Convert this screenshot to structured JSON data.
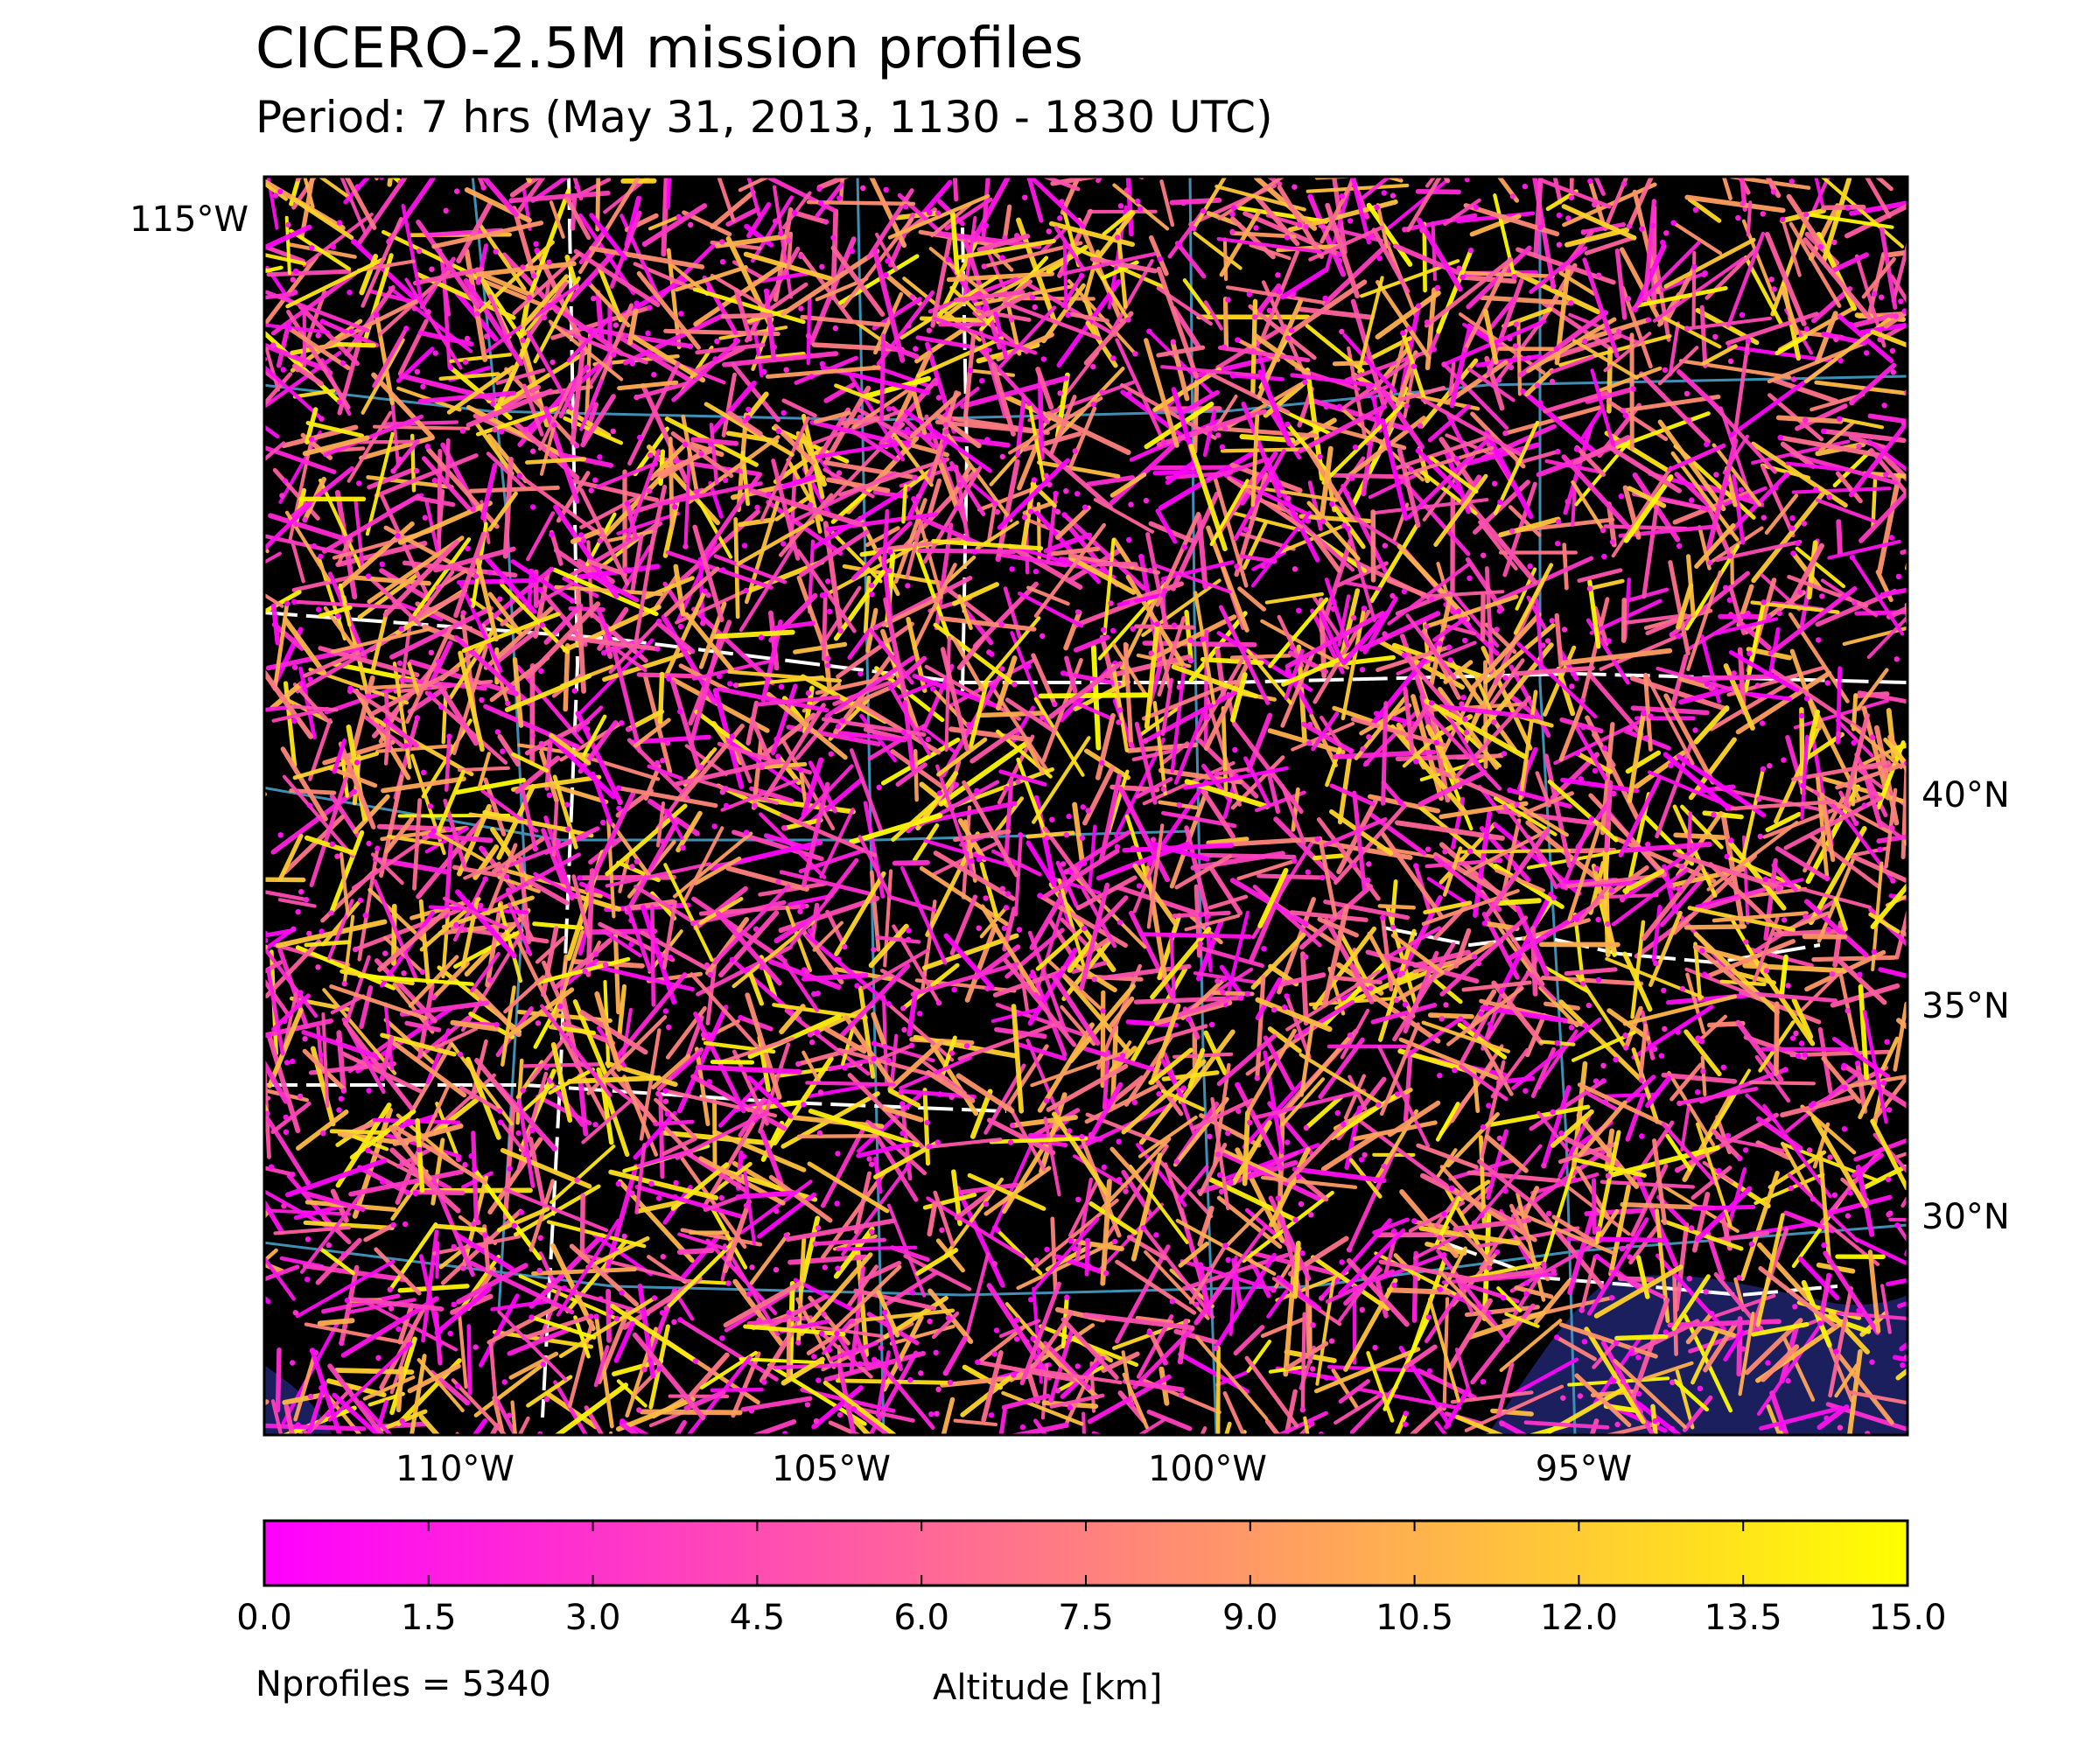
{
  "chart_data": {
    "type": "scatter",
    "title": "CICERO-2.5M mission profiles",
    "subtitle": "Period: 7 hrs (May 31, 2013, 1130 - 1830 UTC)",
    "map": {
      "lon_ticks": [
        "110°W",
        "105°W",
        "100°W",
        "95°W"
      ],
      "lon_tick_values": [
        -110,
        -105,
        -100,
        -95
      ],
      "lat_ticks": [
        "40°N",
        "35°N",
        "30°N"
      ],
      "lat_tick_values": [
        40,
        35,
        30
      ],
      "corner_label": "115°W",
      "grid": false,
      "land_color": "#000000",
      "ocean_color": "#1b1f5e",
      "border_colors": {
        "country": "#ffffff",
        "state": "#3f8fb4"
      }
    },
    "colorbar": {
      "label": "Altitude [km]",
      "vmin": 0.0,
      "vmax": 15.0,
      "ticks": [
        "0.0",
        "1.5",
        "3.0",
        "4.5",
        "6.0",
        "7.5",
        "9.0",
        "10.5",
        "12.0",
        "13.5",
        "15.0"
      ],
      "tick_values": [
        0,
        1.5,
        3,
        4.5,
        6,
        7.5,
        9,
        10.5,
        12,
        13.5,
        15
      ],
      "colormap": "spring",
      "color_min": "#ff00ff",
      "color_max": "#ffff00"
    },
    "nprofiles_label": "Nprofiles = 5340",
    "nprofiles": 5340,
    "legend": "none"
  }
}
